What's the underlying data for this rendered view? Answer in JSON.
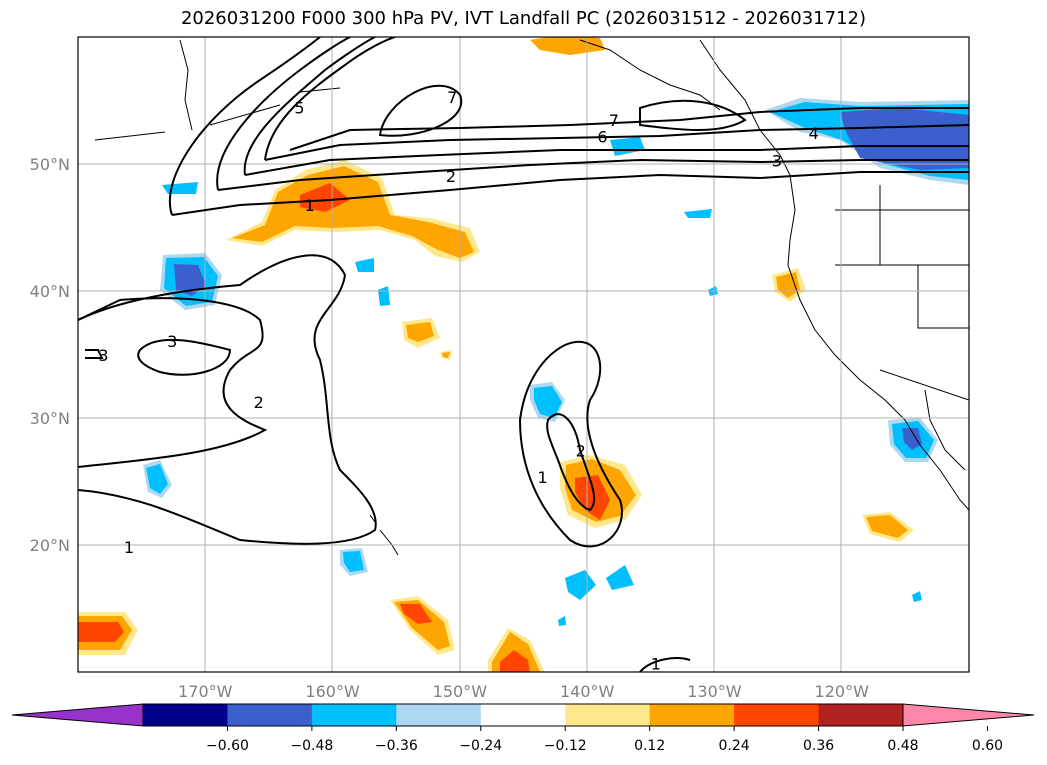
{
  "title": "2026031200 F000 300 hPa PV, IVT Landfall PC (2026031512 - 2026031712)",
  "map": {
    "lon_range": [
      -180,
      -110
    ],
    "lat_range": [
      10,
      60
    ],
    "gridlines": true,
    "lon_ticks": [
      {
        "lon": -170,
        "label": "170°W"
      },
      {
        "lon": -160,
        "label": "160°W"
      },
      {
        "lon": -150,
        "label": "150°W"
      },
      {
        "lon": -140,
        "label": "140°W"
      },
      {
        "lon": -130,
        "label": "130°W"
      },
      {
        "lon": -120,
        "label": "120°W"
      }
    ],
    "lat_ticks": [
      {
        "lat": 50,
        "label": "50°N"
      },
      {
        "lat": 40,
        "label": "40°N"
      },
      {
        "lat": 30,
        "label": "30°N"
      },
      {
        "lat": 20,
        "label": "20°N"
      }
    ],
    "contour_labels": [
      {
        "text": "1",
        "lon": -161.8,
        "lat": 46.6
      },
      {
        "text": "2",
        "lon": -150.7,
        "lat": 48.9
      },
      {
        "text": "3",
        "lon": -125.1,
        "lat": 50.1
      },
      {
        "text": "4",
        "lon": -122.2,
        "lat": 52.3
      },
      {
        "text": "5",
        "lon": -162.6,
        "lat": 54.3
      },
      {
        "text": "6",
        "lon": -138.8,
        "lat": 52.0
      },
      {
        "text": "7",
        "lon": -137.9,
        "lat": 53.3
      },
      {
        "text": "7",
        "lon": -150.6,
        "lat": 55.1
      },
      {
        "text": "3",
        "lon": -172.6,
        "lat": 35.9
      },
      {
        "text": "3",
        "lon": -178.0,
        "lat": 34.8
      },
      {
        "text": "2",
        "lon": -165.8,
        "lat": 31.1
      },
      {
        "text": "1",
        "lon": -176.0,
        "lat": 19.7
      },
      {
        "text": "1",
        "lon": -143.5,
        "lat": 25.2
      },
      {
        "text": "2",
        "lon": -140.5,
        "lat": 27.3
      },
      {
        "text": "1",
        "lon": -134.6,
        "lat": 10.5
      }
    ]
  },
  "colorbar": {
    "ticks": [
      "−0.60",
      "−0.48",
      "−0.36",
      "−0.24",
      "−0.12",
      "0.12",
      "0.24",
      "0.36",
      "0.48",
      "0.60"
    ],
    "colors": [
      "#9932cc",
      "#00008b",
      "#3b5fcd",
      "#00bfff",
      "#add8f0",
      "#ffffff",
      "#ffe88c",
      "#ffa500",
      "#ff4500",
      "#b22222",
      "#ff88aa"
    ],
    "extend": "both"
  }
}
